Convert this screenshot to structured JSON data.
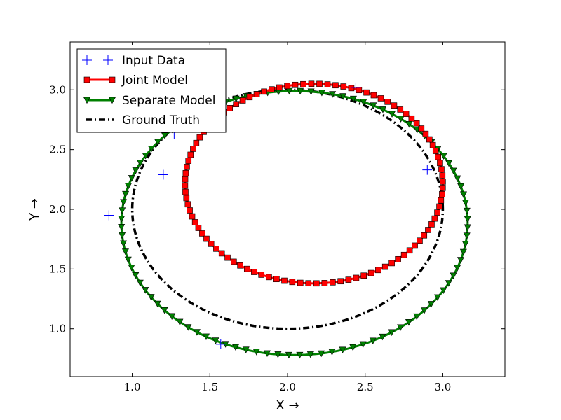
{
  "chart_data": {
    "type": "line",
    "xlabel": "X →",
    "ylabel": "Y →",
    "xlim": [
      0.6,
      3.4
    ],
    "ylim": [
      0.6,
      3.4
    ],
    "xticks": [
      "1.0",
      "1.5",
      "2.0",
      "2.5",
      "3.0"
    ],
    "yticks": [
      "1.0",
      "1.5",
      "2.0",
      "2.5",
      "3.0"
    ],
    "legend_position": "top-left",
    "grid": false,
    "series": [
      {
        "name": "Input Data",
        "style": "scatter",
        "marker": "plus",
        "color": "#0000ff",
        "points": [
          [
            0.85,
            1.95
          ],
          [
            1.2,
            2.29
          ],
          [
            1.27,
            2.63
          ],
          [
            1.57,
            0.87
          ],
          [
            2.44,
            3.02
          ],
          [
            2.9,
            2.33
          ]
        ]
      },
      {
        "name": "Joint Model",
        "style": "ellipse",
        "marker": "square",
        "color": "#ff0000",
        "ellipse": {
          "cx": 2.17,
          "cy": 2.22,
          "rx": 0.83,
          "ry": 0.83,
          "angle_deg": 0,
          "ry_top": 0.83,
          "ry_bottom": 0.84
        },
        "y_extent": [
          1.38,
          3.05
        ],
        "x_extent": [
          1.34,
          3.0
        ]
      },
      {
        "name": "Separate Model",
        "style": "ellipse",
        "marker": "triangle-down",
        "color": "#008000",
        "x_extent": [
          0.93,
          3.16
        ],
        "y_extent": [
          0.78,
          2.99
        ]
      },
      {
        "name": "Ground Truth",
        "style": "ellipse",
        "marker": "none",
        "linestyle": "dashdot",
        "color": "#000000",
        "x_extent": [
          1.0,
          3.0
        ],
        "y_extent": [
          1.0,
          3.0
        ]
      }
    ]
  }
}
